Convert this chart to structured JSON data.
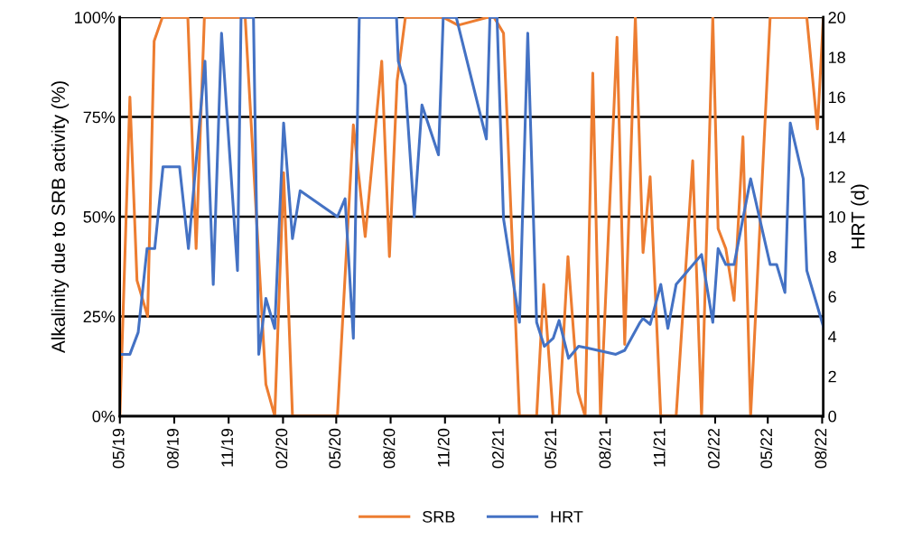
{
  "chart_data": {
    "type": "line",
    "ylabel": "Alkalinity due to SRB activity (%)",
    "y2label": "HRT (d)",
    "xlim": [
      "2019-05-01",
      "2022-08-03"
    ],
    "xticks": [
      {
        "value": "2019-05-01",
        "label": "05/19"
      },
      {
        "value": "2019-08-01",
        "label": "08/19"
      },
      {
        "value": "2019-11-01",
        "label": "11/19"
      },
      {
        "value": "2020-02-01",
        "label": "02/20"
      },
      {
        "value": "2020-05-01",
        "label": "05/20"
      },
      {
        "value": "2020-08-01",
        "label": "08/20"
      },
      {
        "value": "2020-11-01",
        "label": "11/20"
      },
      {
        "value": "2021-02-01",
        "label": "02/21"
      },
      {
        "value": "2021-05-01",
        "label": "05/21"
      },
      {
        "value": "2021-08-01",
        "label": "08/21"
      },
      {
        "value": "2021-11-01",
        "label": "11/21"
      },
      {
        "value": "2022-02-01",
        "label": "02/22"
      },
      {
        "value": "2022-05-01",
        "label": "05/22"
      },
      {
        "value": "2022-08-01",
        "label": "08/22"
      }
    ],
    "ylim": [
      0,
      100
    ],
    "yticks": [
      {
        "value": 0,
        "label": "0%"
      },
      {
        "value": 25,
        "label": "25%"
      },
      {
        "value": 50,
        "label": "50%"
      },
      {
        "value": 75,
        "label": "75%"
      },
      {
        "value": 100,
        "label": "100%"
      }
    ],
    "y2lim": [
      0,
      20
    ],
    "y2ticks": [
      0,
      2,
      4,
      6,
      8,
      10,
      12,
      14,
      16,
      18,
      20
    ],
    "grid": "y",
    "legend": "bottom",
    "marker": "none",
    "line_style": "solid",
    "series": [
      {
        "name": "SRB",
        "color": "#ed7d31",
        "x": [
          "2019-05-01",
          "2019-05-18",
          "2019-05-30",
          "2019-06-17",
          "2019-06-28",
          "2019-07-12",
          "2019-08-24",
          "2019-09-07",
          "2019-09-21",
          "2019-11-29",
          "2020-01-03",
          "2020-01-18",
          "2020-02-02",
          "2020-02-17",
          "2020-05-03",
          "2020-05-30",
          "2020-06-19",
          "2020-07-17",
          "2020-07-30",
          "2020-08-12",
          "2020-08-26",
          "2020-10-29",
          "2020-11-23",
          "2021-01-13",
          "2021-01-23",
          "2021-02-08",
          "2021-03-07",
          "2021-04-05",
          "2021-04-17",
          "2021-05-03",
          "2021-05-13",
          "2021-05-28",
          "2021-06-14",
          "2021-06-26",
          "2021-07-09",
          "2021-07-22",
          "2021-08-19",
          "2021-09-01",
          "2021-09-19",
          "2021-10-02",
          "2021-10-14",
          "2021-11-01",
          "2021-11-27",
          "2021-12-25",
          "2022-01-09",
          "2022-01-28",
          "2022-02-06",
          "2022-02-19",
          "2022-03-05",
          "2022-03-20",
          "2022-04-02",
          "2022-05-05",
          "2022-07-06",
          "2022-07-24",
          "2022-08-03"
        ],
        "values": [
          0,
          80,
          34,
          25,
          94,
          100,
          100,
          42,
          100,
          100,
          8,
          0,
          61,
          0,
          0,
          73,
          45,
          89,
          40,
          84,
          100,
          100,
          98,
          100,
          100,
          96,
          0,
          0,
          33,
          0,
          0,
          40,
          6,
          0,
          86,
          0,
          95,
          18,
          100,
          41,
          60,
          0,
          0,
          64,
          0,
          100,
          47,
          42,
          29,
          70,
          0,
          100,
          100,
          72,
          100
        ]
      },
      {
        "name": "HRT",
        "color": "#4472c4",
        "axis": "y2",
        "x": [
          "2019-05-01",
          "2019-05-18",
          "2019-06-01",
          "2019-06-16",
          "2019-06-29",
          "2019-07-13",
          "2019-08-10",
          "2019-08-25",
          "2019-09-22",
          "2019-10-06",
          "2019-10-20",
          "2019-11-16",
          "2019-11-22",
          "2019-12-13",
          "2019-12-22",
          "2020-01-03",
          "2020-01-18",
          "2020-02-02",
          "2020-02-17",
          "2020-03-01",
          "2020-05-03",
          "2020-05-16",
          "2020-05-30",
          "2020-06-09",
          "2020-08-11",
          "2020-08-14",
          "2020-08-26",
          "2020-09-10",
          "2020-09-23",
          "2020-10-21",
          "2020-10-29",
          "2020-11-20",
          "2021-01-10",
          "2021-01-16",
          "2021-01-28",
          "2021-02-08",
          "2021-03-07",
          "2021-03-21",
          "2021-04-05",
          "2021-04-18",
          "2021-05-03",
          "2021-05-13",
          "2021-05-29",
          "2021-06-15",
          "2021-07-02",
          "2021-08-17",
          "2021-09-01",
          "2021-09-27",
          "2021-10-02",
          "2021-10-14",
          "2021-11-01",
          "2021-11-13",
          "2021-11-27",
          "2022-01-09",
          "2022-01-28",
          "2022-02-06",
          "2022-02-19",
          "2022-03-05",
          "2022-04-02",
          "2022-05-05",
          "2022-05-16",
          "2022-05-30",
          "2022-06-08",
          "2022-06-30",
          "2022-07-06",
          "2022-08-03"
        ],
        "values": [
          3.1,
          3.1,
          4.2,
          8.4,
          8.4,
          12.5,
          12.5,
          8.4,
          17.8,
          6.6,
          19.2,
          7.3,
          20,
          20,
          3.1,
          5.9,
          4.4,
          14.7,
          8.9,
          11.3,
          10.0,
          10.9,
          3.9,
          20,
          20,
          17.8,
          16.6,
          10.0,
          15.6,
          13.1,
          20,
          20,
          13.9,
          20,
          20,
          9.9,
          4.7,
          19.2,
          4.7,
          3.5,
          3.9,
          4.8,
          2.9,
          3.5,
          3.4,
          3.1,
          3.3,
          4.7,
          4.9,
          4.6,
          6.6,
          4.4,
          6.6,
          8.1,
          4.7,
          8.4,
          7.6,
          7.6,
          11.9,
          7.6,
          7.6,
          6.2,
          14.7,
          11.9,
          7.3,
          4.5
        ]
      }
    ]
  }
}
